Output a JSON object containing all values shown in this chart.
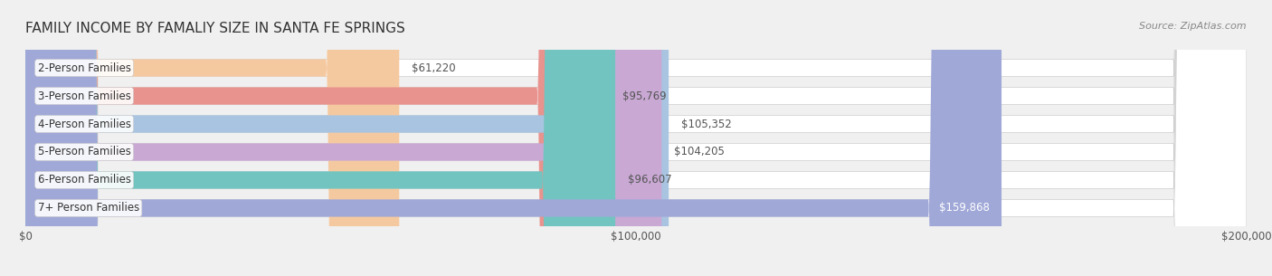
{
  "title": "FAMILY INCOME BY FAMALIY SIZE IN SANTA FE SPRINGS",
  "source": "Source: ZipAtlas.com",
  "categories": [
    "2-Person Families",
    "3-Person Families",
    "4-Person Families",
    "5-Person Families",
    "6-Person Families",
    "7+ Person Families"
  ],
  "values": [
    61220,
    95769,
    105352,
    104205,
    96607,
    159868
  ],
  "bar_colors": [
    "#f5c9a0",
    "#e8938e",
    "#a8c4e0",
    "#c9a8d4",
    "#72c4c0",
    "#a0a8d8"
  ],
  "bar_edge_colors": [
    "#e8a870",
    "#d4706a",
    "#80a8cc",
    "#b088bc",
    "#4aacaa",
    "#8088c0"
  ],
  "value_labels": [
    "$61,220",
    "$95,769",
    "$105,352",
    "$104,205",
    "$96,607",
    "$159,868"
  ],
  "xlim": [
    0,
    200000
  ],
  "xticks": [
    0,
    100000,
    200000
  ],
  "xtick_labels": [
    "$0",
    "$100,000",
    "$200,000"
  ],
  "bar_height": 0.62,
  "background_color": "#f0f0f0",
  "bar_background": "#e8e8e8",
  "title_fontsize": 11,
  "label_fontsize": 8.5,
  "value_fontsize": 8.5,
  "source_fontsize": 8
}
